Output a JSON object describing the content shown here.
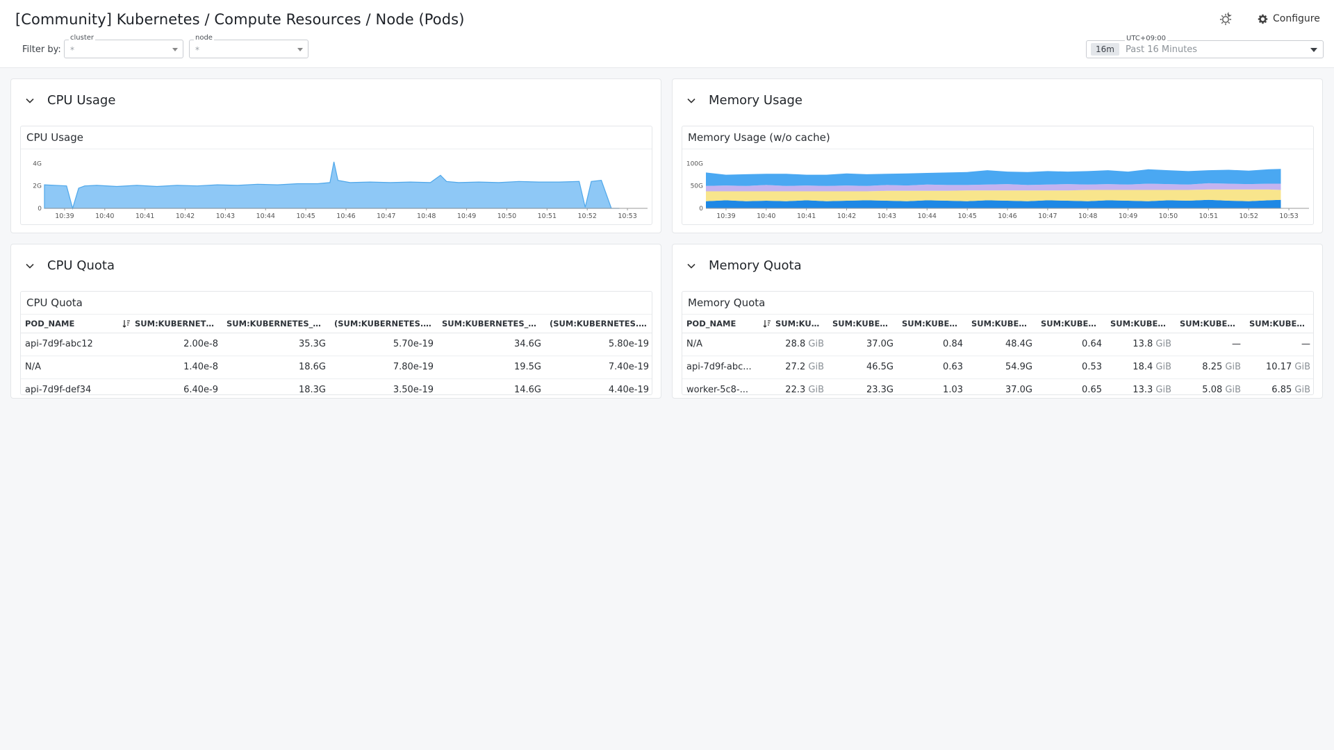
{
  "header": {
    "title": "[Community] Kubernetes / Compute Resources / Node (Pods)",
    "configure_label": "Configure",
    "theme_icon": "sun-moon-icon",
    "configure_icon": "gear-icon"
  },
  "filters": {
    "label": "Filter by:",
    "cluster": {
      "legend": "cluster",
      "value": "*"
    },
    "node": {
      "legend": "node",
      "value": "*"
    }
  },
  "timepicker": {
    "timezone": "UTC+09:00",
    "badge": "16m",
    "range": "Past 16 Minutes"
  },
  "colors": {
    "cpu_fill": "#8ec8f6",
    "cpu_line": "#4ea7ea",
    "mem_blue": "#1e88e5",
    "mem_purple": "#c3b3f0",
    "mem_yellow": "#f8e58c",
    "mem_light_blue": "#4aa8f2"
  },
  "groups": {
    "cpu_usage": {
      "title": "CPU Usage",
      "widget_title": "CPU Usage"
    },
    "memory_usage": {
      "title": "Memory Usage",
      "widget_title": "Memory Usage (w/o cache)"
    },
    "cpu_quota": {
      "title": "CPU Quota",
      "widget_title": "CPU Quota",
      "columns": [
        "POD_NAME",
        "SUM:KUBERNETES....",
        "SUM:KUBERNETES_STA...",
        "(SUM:KUBERNETES.CP...",
        "SUM:KUBERNETES_STA...",
        "(SUM:KUBERNETES.CP..."
      ],
      "rows": [
        [
          "api-7d9f-abc12",
          "2.00e-8",
          "35.3G",
          "5.70e-19",
          "34.6G",
          "5.80e-19"
        ],
        [
          "N/A",
          "1.40e-8",
          "18.6G",
          "7.80e-19",
          "19.5G",
          "7.40e-19"
        ],
        [
          "api-7d9f-def34",
          "6.40e-9",
          "18.3G",
          "3.50e-19",
          "14.6G",
          "4.40e-19"
        ]
      ]
    },
    "memory_quota": {
      "title": "Memory Quota",
      "widget_title": "Memory Quota",
      "columns": [
        "POD_NAME",
        "SUM:KUB...",
        "SUM:KUBER...",
        "SUM:KUBER...",
        "SUM:KUBER...",
        "SUM:KUBER...",
        "SUM:KUBER...",
        "SUM:KUBER...",
        "SUM:KUBER..."
      ],
      "rows": [
        [
          {
            "v": "N/A"
          },
          {
            "v": "28.8",
            "u": "GiB"
          },
          {
            "v": "37.0G"
          },
          {
            "v": "0.84"
          },
          {
            "v": "48.4G"
          },
          {
            "v": "0.64"
          },
          {
            "v": "13.8",
            "u": "GiB"
          },
          {
            "v": "—"
          },
          {
            "v": "—"
          }
        ],
        [
          {
            "v": "api-7d9f-abc..."
          },
          {
            "v": "27.2",
            "u": "GiB"
          },
          {
            "v": "46.5G"
          },
          {
            "v": "0.63"
          },
          {
            "v": "54.9G"
          },
          {
            "v": "0.53"
          },
          {
            "v": "18.4",
            "u": "GiB"
          },
          {
            "v": "8.25",
            "u": "GiB"
          },
          {
            "v": "10.17",
            "u": "GiB"
          }
        ],
        [
          {
            "v": "worker-5c8-..."
          },
          {
            "v": "22.3",
            "u": "GiB"
          },
          {
            "v": "23.3G"
          },
          {
            "v": "1.03"
          },
          {
            "v": "37.0G"
          },
          {
            "v": "0.65"
          },
          {
            "v": "13.3",
            "u": "GiB"
          },
          {
            "v": "5.08",
            "u": "GiB"
          },
          {
            "v": "6.85",
            "u": "GiB"
          }
        ]
      ]
    }
  },
  "chart_data": [
    {
      "type": "area",
      "title": "CPU Usage",
      "yticks": [
        "0",
        "2G",
        "4G"
      ],
      "ylim": [
        0,
        4.4
      ],
      "xticks": [
        "10:39",
        "10:40",
        "10:41",
        "10:42",
        "10:43",
        "10:44",
        "10:45",
        "10:46",
        "10:47",
        "10:48",
        "10:49",
        "10:50",
        "10:51",
        "10:52",
        "10:53"
      ],
      "xlim": [
        0,
        15
      ],
      "series": [
        {
          "x": [
            0,
            0.55,
            0.7,
            0.85,
            1.0,
            1.3,
            1.8,
            2.3,
            2.8,
            3.3,
            3.8,
            4.3,
            4.8,
            5.3,
            5.8,
            6.3,
            6.8,
            7.1,
            7.2,
            7.3,
            7.6,
            8.1,
            8.6,
            9.1,
            9.6,
            9.85,
            10.0,
            10.3,
            10.8,
            11.3,
            11.8,
            12.3,
            12.8,
            13.3,
            13.45,
            13.6,
            13.85,
            14.1,
            14.3
          ],
          "y": [
            2.1,
            2.0,
            0.0,
            1.8,
            2.0,
            2.05,
            1.95,
            2.05,
            1.95,
            2.05,
            2.0,
            2.1,
            2.05,
            2.15,
            2.1,
            2.2,
            2.2,
            2.3,
            4.15,
            2.5,
            2.3,
            2.35,
            2.3,
            2.35,
            2.3,
            2.95,
            2.4,
            2.3,
            2.35,
            2.3,
            2.4,
            2.35,
            2.35,
            2.4,
            0.1,
            2.4,
            2.5,
            0.0,
            0.0
          ]
        }
      ]
    },
    {
      "type": "area",
      "title": "Memory Usage (w/o cache)",
      "stacked": true,
      "yticks": [
        "0",
        "50G",
        "100G"
      ],
      "ylim": [
        0,
        110
      ],
      "xticks": [
        "10:39",
        "10:40",
        "10:41",
        "10:42",
        "10:43",
        "10:44",
        "10:45",
        "10:46",
        "10:47",
        "10:48",
        "10:49",
        "10:50",
        "10:51",
        "10:52",
        "10:53"
      ],
      "xlim": [
        0,
        15
      ],
      "x": [
        0,
        0.5,
        1,
        1.5,
        2,
        2.5,
        3,
        3.5,
        4,
        4.5,
        5,
        5.5,
        6,
        6.5,
        7,
        7.5,
        8,
        8.5,
        9,
        9.5,
        10,
        10.5,
        11,
        11.5,
        12,
        12.5,
        13,
        13.5,
        14,
        14.3
      ],
      "series": [
        {
          "name": "",
          "values": [
            16,
            18,
            16,
            17,
            16,
            18,
            16,
            17,
            18,
            17,
            16,
            18,
            17,
            16,
            18,
            17,
            16,
            18,
            17,
            16,
            18,
            17,
            16,
            18,
            17,
            19,
            17,
            16,
            18,
            19
          ]
        },
        {
          "name": "",
          "values": [
            22,
            20,
            22,
            21,
            22,
            20,
            22,
            21,
            20,
            22,
            23,
            21,
            22,
            24,
            22,
            23,
            24,
            22,
            23,
            25,
            23,
            24,
            25,
            23,
            24,
            23,
            25,
            26,
            24,
            22
          ]
        },
        {
          "name": "",
          "values": [
            12,
            13,
            12,
            14,
            12,
            13,
            12,
            13,
            12,
            13,
            12,
            14,
            13,
            12,
            13,
            14,
            12,
            13,
            14,
            12,
            13,
            12,
            14,
            13,
            12,
            14,
            13,
            12,
            13,
            14
          ]
        },
        {
          "name": "",
          "values": [
            30,
            24,
            26,
            25,
            27,
            24,
            25,
            27,
            26,
            25,
            27,
            26,
            28,
            29,
            32,
            28,
            29,
            30,
            28,
            30,
            31,
            29,
            32,
            31,
            30,
            29,
            31,
            30,
            32,
            33
          ]
        }
      ]
    }
  ]
}
